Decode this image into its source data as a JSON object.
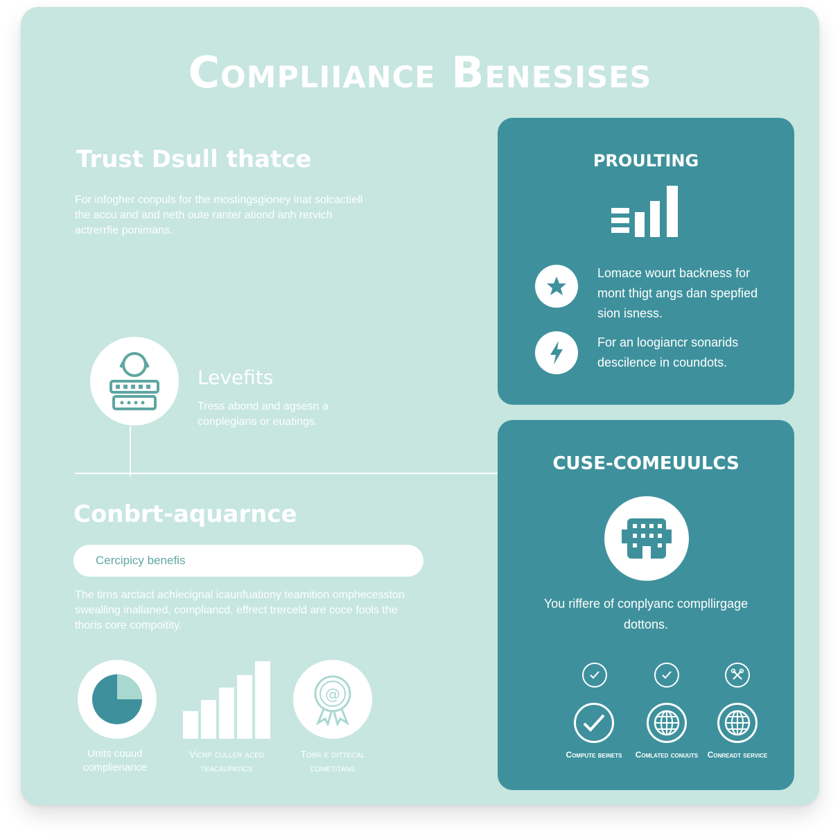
{
  "title": "Compliiance Benesises",
  "colors": {
    "background": "#c6e6df",
    "panel": "#3e919c",
    "text": "#ffffff",
    "accent": "#5fa6a1"
  },
  "left": {
    "trust": {
      "heading": "Trust Dsull thatce",
      "text": "For infogher conpuls for the mostingsgioney inat solcactiell the accu and and neth oute ranter ationd anh rervich actrerrfie ponimans."
    },
    "levefits": {
      "icon": "shield-server-icon",
      "heading": "Levefits",
      "text": "Tress abond and agsesn a conplegians or euatings."
    },
    "conbrt": {
      "heading": "Conbrt-aquarnce",
      "pill_label": "Cercipicy benefis",
      "text": "The tirns arctact achiecignal icaunfuationy teamition omphecesston swealling inallaned, compliancd, effrect trerceld are coce fools the thoris core compoitity."
    },
    "stats": [
      {
        "icon": "pie-chart-icon",
        "label": "Units couud complienance"
      },
      {
        "icon": "bar-chart-icon",
        "label": "Vicrp culler aced teacaupatics"
      },
      {
        "icon": "award-badge-icon",
        "label": "Tobr e dittecal cometitans"
      }
    ]
  },
  "panel_top": {
    "title": "PROULTING",
    "icon": "signal-bars-icon",
    "features": [
      {
        "icon": "star-icon",
        "text": "Lomace wourt backness for mont thigt angs dan spepfied sion isness."
      },
      {
        "icon": "lightning-icon",
        "text": "For an loogiancr sonarids descilence in coundots."
      }
    ]
  },
  "panel_bottom": {
    "title": "CUSE-COMEUULCS",
    "icon": "building-icon",
    "description": "You riffere of conplyanc compllirgage dottons.",
    "small_icons": [
      "check-circle-icon",
      "check-circle-icon",
      "tools-icon"
    ],
    "services": [
      {
        "icon": "checkmark-icon",
        "label": "Compute beinets"
      },
      {
        "icon": "globe-icon",
        "label": "Comlated conuuts"
      },
      {
        "icon": "globe-icon",
        "label": "Conreadt service"
      }
    ]
  }
}
